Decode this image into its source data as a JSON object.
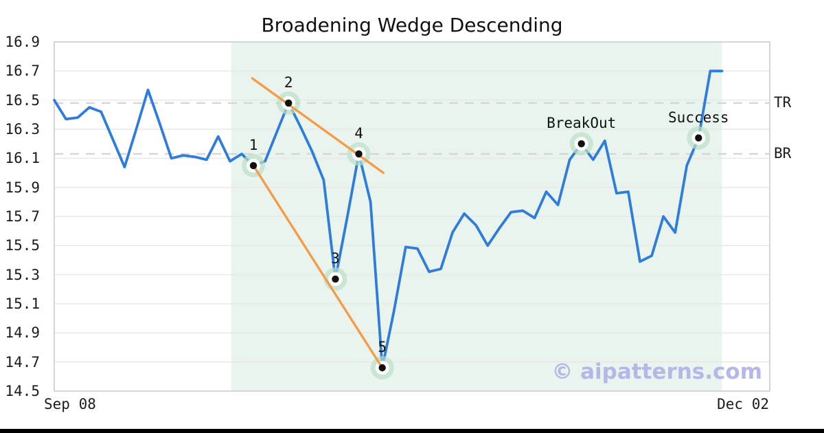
{
  "watermark": {
    "text": "© aipatterns.com",
    "color": "#b6b7e8"
  },
  "x_axis": {
    "left_label": "Sep 08",
    "right_label": "Dec 02"
  },
  "colors": {
    "price_line": "#2e7cdb",
    "trendline": "#f49c47",
    "pattern_zone": "#e9f4ee",
    "gridline": "#e8e8e8",
    "plot_border": "#d2d2d2",
    "dashed_level": "#d6d6d6",
    "marker_halo": "#b9e0c7",
    "marker_ring": "#ffffff",
    "marker_dot": "#111111"
  },
  "chart_data": {
    "type": "line",
    "title": "Broadening Wedge Descending",
    "xlabel": "",
    "ylabel": "",
    "x_range_labels": [
      "Sep 08",
      "Dec 02"
    ],
    "ylim": [
      14.5,
      16.9
    ],
    "ytick_step": 0.2,
    "grid": "horizontal",
    "legend": "none",
    "y_tick_labels": [
      "16.9",
      "16.7",
      "16.5",
      "16.3",
      "16.1",
      "15.9",
      "15.7",
      "15.5",
      "15.3",
      "15.1",
      "14.9",
      "14.7",
      "14.5"
    ],
    "series": [
      {
        "name": "price",
        "values": [
          16.5,
          16.37,
          16.38,
          16.45,
          16.42,
          16.23,
          16.04,
          16.3,
          16.57,
          16.34,
          16.1,
          16.12,
          16.11,
          16.09,
          16.25,
          16.08,
          16.13,
          16.05,
          16.08,
          16.28,
          16.48,
          16.32,
          16.15,
          15.95,
          15.27,
          15.69,
          16.13,
          15.8,
          14.66,
          15.05,
          15.49,
          15.48,
          15.32,
          15.34,
          15.59,
          15.72,
          15.64,
          15.5,
          15.62,
          15.73,
          15.74,
          15.69,
          15.87,
          15.78,
          16.09,
          16.2,
          16.09,
          16.22,
          15.86,
          15.87,
          15.39,
          15.43,
          15.7,
          15.59,
          16.05,
          16.24,
          16.7,
          16.7
        ]
      }
    ],
    "markers": [
      {
        "label": "1",
        "day": 17,
        "value": 16.05
      },
      {
        "label": "2",
        "day": 20,
        "value": 16.48
      },
      {
        "label": "3",
        "day": 24,
        "value": 15.27
      },
      {
        "label": "4",
        "day": 26,
        "value": 16.13
      },
      {
        "label": "5",
        "day": 28,
        "value": 14.66
      },
      {
        "label": "BreakOut",
        "day": 45,
        "value": 16.2
      },
      {
        "label": "Success",
        "day": 55,
        "value": 16.24
      }
    ],
    "levels": [
      {
        "label": "TR",
        "value": 16.48
      },
      {
        "label": "BR",
        "value": 16.13
      }
    ],
    "trendlines": [
      {
        "name": "upper",
        "from_day": 16.9,
        "from_value": 16.65,
        "to_day": 28.1,
        "to_value": 16.0
      },
      {
        "name": "lower",
        "from_day": 17.0,
        "from_value": 16.05,
        "to_day": 28.0,
        "to_value": 14.66
      }
    ],
    "pattern_zone": {
      "start_day": 15.1,
      "end_day": 57
    }
  }
}
